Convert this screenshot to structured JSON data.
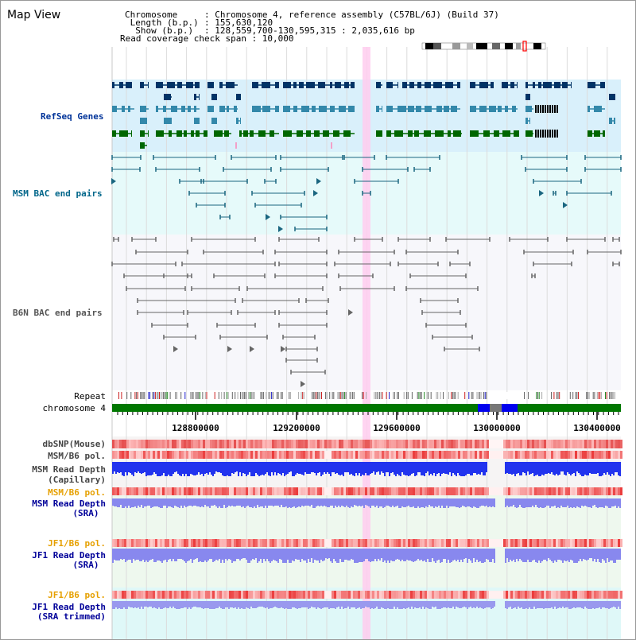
{
  "title": "Map View",
  "info": {
    "chrom_key": "Chromosome   ",
    "chrom_val": ": Chromosome 4, reference assembly (C57BL/6J) (Build 37)",
    "length_key": " Length (b.p.)",
    "length_val": ": 155,630,120",
    "show_key": "  Show (b.p.)",
    "show_val": ": 128,559,700-130,595,315 : 2,035,616 bp",
    "read_cov": "Read coverage check span : 10,000"
  },
  "tracks": {
    "refseq": "RefSeq Genes",
    "msm_bac": "MSM BAC end pairs",
    "b6n_bac": "B6N BAC end pairs",
    "repeat": "Repeat",
    "chromosome": "chromosome 4",
    "dbsnp": "dbSNP(Mouse)",
    "msm_b6_pol": "MSM/B6 pol.",
    "msm_depth_cap1": "MSM Read Depth",
    "msm_depth_cap2": "(Capillary)",
    "msm_b6_pol2": "MSM/B6 pol.",
    "msm_depth_sra1": "MSM Read Depth",
    "msm_depth_sra2": "(SRA)",
    "jf1_b6_pol": "JF1/B6 pol.",
    "jf1_depth_sra1": "JF1 Read Depth",
    "jf1_depth_sra2": "(SRA)",
    "jf1_b6_pol2": "JF1/B6 pol.",
    "jf1_depth_tr1": "JF1 Read Depth",
    "jf1_depth_tr2": "(SRA trimmed)"
  },
  "axis_ticks": [
    "128800000",
    "129200000",
    "129600000",
    "130000000",
    "130400000"
  ],
  "colors": {
    "refseq_dark": "#003366",
    "refseq_mid": "#3388aa",
    "refseq_green": "#006600",
    "msm_pair": "#1a6680",
    "b6n_pair": "#666666",
    "chrom_green": "#007700",
    "highlight": "#ffccee",
    "depth_blue": "#2233dd",
    "depth_light": "#8888ee",
    "snp_red": "#ee4444"
  }
}
